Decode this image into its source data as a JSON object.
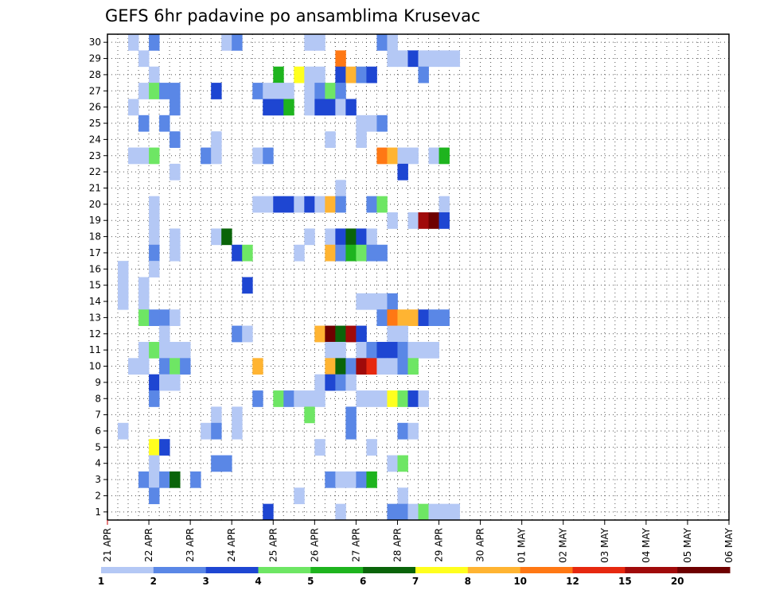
{
  "chart_data": {
    "type": "heatmap",
    "title": "GEFS 6hr padavine po ansamblima Krusevac",
    "xlabel": "",
    "ylabel": "",
    "x_ticks": [
      "21 APR",
      "22 APR",
      "23 APR",
      "24 APR",
      "25 APR",
      "26 APR",
      "27 APR",
      "28 APR",
      "29 APR",
      "30 APR",
      "01 MAY",
      "02 MAY",
      "03 MAY",
      "04 MAY",
      "05 MAY",
      "06 MAY"
    ],
    "y_ticks": [
      1,
      2,
      3,
      4,
      5,
      6,
      7,
      8,
      9,
      10,
      11,
      12,
      13,
      14,
      15,
      16,
      17,
      18,
      19,
      20,
      21,
      22,
      23,
      24,
      25,
      26,
      27,
      28,
      29,
      30
    ],
    "ylim": [
      0.5,
      30.5
    ],
    "steps_per_day": 4,
    "grid": true,
    "colorbar": {
      "position": "bottom",
      "levels": [
        "1",
        "2",
        "3",
        "4",
        "5",
        "6",
        "7",
        "8",
        "10",
        "12",
        "15",
        "20"
      ],
      "colors": [
        "#b4c8f5",
        "#5a87e6",
        "#1e46d2",
        "#6ee664",
        "#1eb41e",
        "#0a640a",
        "#ffff1e",
        "#ffb432",
        "#ff7814",
        "#e6280f",
        "#a00a0a",
        "#6e0000"
      ]
    },
    "cells": [
      [
        30,
        2,
        0
      ],
      [
        30,
        4,
        1
      ],
      [
        30,
        11,
        0
      ],
      [
        30,
        12,
        1
      ],
      [
        30,
        19,
        0
      ],
      [
        30,
        20,
        0
      ],
      [
        30,
        26,
        1
      ],
      [
        30,
        27,
        0
      ],
      [
        29,
        3,
        0
      ],
      [
        29,
        22,
        8
      ],
      [
        29,
        27,
        0
      ],
      [
        29,
        28,
        0
      ],
      [
        29,
        29,
        2
      ],
      [
        29,
        30,
        0
      ],
      [
        29,
        31,
        0
      ],
      [
        29,
        32,
        0
      ],
      [
        29,
        33,
        0
      ],
      [
        28,
        4,
        0
      ],
      [
        28,
        16,
        4
      ],
      [
        28,
        18,
        6
      ],
      [
        28,
        19,
        0
      ],
      [
        28,
        20,
        0
      ],
      [
        28,
        22,
        2
      ],
      [
        28,
        23,
        7
      ],
      [
        28,
        24,
        1
      ],
      [
        28,
        25,
        2
      ],
      [
        28,
        30,
        1
      ],
      [
        27,
        3,
        0
      ],
      [
        27,
        4,
        3
      ],
      [
        27,
        5,
        1
      ],
      [
        27,
        6,
        1
      ],
      [
        27,
        10,
        2
      ],
      [
        27,
        14,
        1
      ],
      [
        27,
        15,
        0
      ],
      [
        27,
        16,
        0
      ],
      [
        27,
        17,
        0
      ],
      [
        27,
        19,
        0
      ],
      [
        27,
        20,
        1
      ],
      [
        27,
        21,
        3
      ],
      [
        27,
        22,
        1
      ],
      [
        26,
        2,
        0
      ],
      [
        26,
        6,
        1
      ],
      [
        26,
        15,
        2
      ],
      [
        26,
        16,
        2
      ],
      [
        26,
        17,
        4
      ],
      [
        26,
        19,
        0
      ],
      [
        26,
        20,
        2
      ],
      [
        26,
        21,
        2
      ],
      [
        26,
        22,
        0
      ],
      [
        26,
        23,
        2
      ],
      [
        25,
        3,
        1
      ],
      [
        25,
        5,
        1
      ],
      [
        25,
        24,
        0
      ],
      [
        25,
        25,
        0
      ],
      [
        25,
        26,
        1
      ],
      [
        24,
        6,
        1
      ],
      [
        24,
        10,
        0
      ],
      [
        24,
        21,
        0
      ],
      [
        24,
        24,
        0
      ],
      [
        23,
        2,
        0
      ],
      [
        23,
        3,
        0
      ],
      [
        23,
        4,
        3
      ],
      [
        23,
        9,
        1
      ],
      [
        23,
        10,
        0
      ],
      [
        23,
        14,
        0
      ],
      [
        23,
        15,
        1
      ],
      [
        23,
        26,
        8
      ],
      [
        23,
        27,
        7
      ],
      [
        23,
        28,
        0
      ],
      [
        23,
        29,
        0
      ],
      [
        23,
        31,
        0
      ],
      [
        23,
        32,
        4
      ],
      [
        22,
        6,
        0
      ],
      [
        22,
        28,
        2
      ],
      [
        21,
        22,
        0
      ],
      [
        20,
        4,
        0
      ],
      [
        20,
        14,
        0
      ],
      [
        20,
        15,
        0
      ],
      [
        20,
        16,
        2
      ],
      [
        20,
        17,
        2
      ],
      [
        20,
        18,
        0
      ],
      [
        20,
        19,
        2
      ],
      [
        20,
        20,
        0
      ],
      [
        20,
        21,
        7
      ],
      [
        20,
        22,
        1
      ],
      [
        20,
        25,
        1
      ],
      [
        20,
        26,
        3
      ],
      [
        20,
        32,
        0
      ],
      [
        19,
        4,
        0
      ],
      [
        19,
        27,
        0
      ],
      [
        19,
        29,
        0
      ],
      [
        19,
        30,
        10
      ],
      [
        19,
        31,
        11
      ],
      [
        19,
        32,
        2
      ],
      [
        18,
        4,
        0
      ],
      [
        18,
        6,
        0
      ],
      [
        18,
        10,
        0
      ],
      [
        18,
        11,
        5
      ],
      [
        18,
        19,
        0
      ],
      [
        18,
        21,
        0
      ],
      [
        18,
        22,
        2
      ],
      [
        18,
        23,
        5
      ],
      [
        18,
        24,
        2
      ],
      [
        18,
        25,
        0
      ],
      [
        17,
        4,
        1
      ],
      [
        17,
        6,
        0
      ],
      [
        17,
        12,
        2
      ],
      [
        17,
        13,
        3
      ],
      [
        17,
        18,
        0
      ],
      [
        17,
        21,
        7
      ],
      [
        17,
        22,
        1
      ],
      [
        17,
        23,
        4
      ],
      [
        17,
        24,
        3
      ],
      [
        17,
        25,
        1
      ],
      [
        17,
        26,
        1
      ],
      [
        16,
        1,
        0
      ],
      [
        16,
        4,
        0
      ],
      [
        15,
        1,
        0
      ],
      [
        15,
        3,
        0
      ],
      [
        15,
        13,
        2
      ],
      [
        14,
        1,
        0
      ],
      [
        14,
        3,
        0
      ],
      [
        14,
        24,
        0
      ],
      [
        14,
        25,
        0
      ],
      [
        14,
        26,
        0
      ],
      [
        14,
        27,
        1
      ],
      [
        13,
        3,
        3
      ],
      [
        13,
        4,
        1
      ],
      [
        13,
        5,
        1
      ],
      [
        13,
        6,
        0
      ],
      [
        13,
        26,
        1
      ],
      [
        13,
        27,
        8
      ],
      [
        13,
        28,
        7
      ],
      [
        13,
        29,
        7
      ],
      [
        13,
        30,
        2
      ],
      [
        13,
        31,
        1
      ],
      [
        13,
        32,
        1
      ],
      [
        12,
        5,
        0
      ],
      [
        12,
        12,
        1
      ],
      [
        12,
        13,
        0
      ],
      [
        12,
        20,
        7
      ],
      [
        12,
        21,
        11
      ],
      [
        12,
        22,
        5
      ],
      [
        12,
        23,
        10
      ],
      [
        12,
        24,
        2
      ],
      [
        12,
        27,
        0
      ],
      [
        12,
        28,
        0
      ],
      [
        11,
        3,
        0
      ],
      [
        11,
        4,
        3
      ],
      [
        11,
        5,
        0
      ],
      [
        11,
        6,
        0
      ],
      [
        11,
        7,
        0
      ],
      [
        11,
        21,
        0
      ],
      [
        11,
        22,
        0
      ],
      [
        11,
        24,
        0
      ],
      [
        11,
        25,
        1
      ],
      [
        11,
        26,
        2
      ],
      [
        11,
        27,
        2
      ],
      [
        11,
        28,
        1
      ],
      [
        11,
        29,
        0
      ],
      [
        11,
        30,
        0
      ],
      [
        11,
        31,
        0
      ],
      [
        10,
        2,
        0
      ],
      [
        10,
        3,
        0
      ],
      [
        10,
        5,
        1
      ],
      [
        10,
        6,
        3
      ],
      [
        10,
        7,
        1
      ],
      [
        10,
        14,
        7
      ],
      [
        10,
        21,
        7
      ],
      [
        10,
        22,
        5
      ],
      [
        10,
        23,
        1
      ],
      [
        10,
        24,
        10
      ],
      [
        10,
        25,
        9
      ],
      [
        10,
        26,
        0
      ],
      [
        10,
        27,
        0
      ],
      [
        10,
        28,
        1
      ],
      [
        10,
        29,
        3
      ],
      [
        9,
        4,
        2
      ],
      [
        9,
        5,
        0
      ],
      [
        9,
        6,
        0
      ],
      [
        9,
        20,
        0
      ],
      [
        9,
        21,
        2
      ],
      [
        9,
        22,
        1
      ],
      [
        9,
        23,
        0
      ],
      [
        8,
        4,
        1
      ],
      [
        8,
        14,
        1
      ],
      [
        8,
        16,
        3
      ],
      [
        8,
        17,
        1
      ],
      [
        8,
        18,
        0
      ],
      [
        8,
        19,
        0
      ],
      [
        8,
        20,
        0
      ],
      [
        8,
        24,
        0
      ],
      [
        8,
        25,
        0
      ],
      [
        8,
        26,
        0
      ],
      [
        8,
        27,
        6
      ],
      [
        8,
        28,
        3
      ],
      [
        8,
        29,
        2
      ],
      [
        8,
        30,
        0
      ],
      [
        7,
        10,
        0
      ],
      [
        7,
        12,
        0
      ],
      [
        7,
        19,
        3
      ],
      [
        7,
        23,
        1
      ],
      [
        6,
        1,
        0
      ],
      [
        6,
        9,
        0
      ],
      [
        6,
        10,
        1
      ],
      [
        6,
        12,
        0
      ],
      [
        6,
        23,
        1
      ],
      [
        6,
        28,
        1
      ],
      [
        6,
        29,
        0
      ],
      [
        5,
        4,
        6
      ],
      [
        5,
        5,
        2
      ],
      [
        5,
        20,
        0
      ],
      [
        5,
        25,
        0
      ],
      [
        4,
        4,
        0
      ],
      [
        4,
        10,
        1
      ],
      [
        4,
        11,
        1
      ],
      [
        4,
        27,
        0
      ],
      [
        4,
        28,
        3
      ],
      [
        3,
        3,
        1
      ],
      [
        3,
        4,
        0
      ],
      [
        3,
        5,
        1
      ],
      [
        3,
        6,
        5
      ],
      [
        3,
        8,
        1
      ],
      [
        3,
        21,
        1
      ],
      [
        3,
        22,
        0
      ],
      [
        3,
        23,
        0
      ],
      [
        3,
        24,
        1
      ],
      [
        3,
        25,
        4
      ],
      [
        2,
        4,
        1
      ],
      [
        2,
        18,
        0
      ],
      [
        2,
        28,
        0
      ],
      [
        1,
        15,
        2
      ],
      [
        1,
        22,
        0
      ],
      [
        1,
        27,
        1
      ],
      [
        1,
        28,
        1
      ],
      [
        1,
        29,
        0
      ],
      [
        1,
        30,
        3
      ],
      [
        1,
        31,
        0
      ],
      [
        1,
        32,
        0
      ],
      [
        1,
        33,
        0
      ]
    ]
  }
}
